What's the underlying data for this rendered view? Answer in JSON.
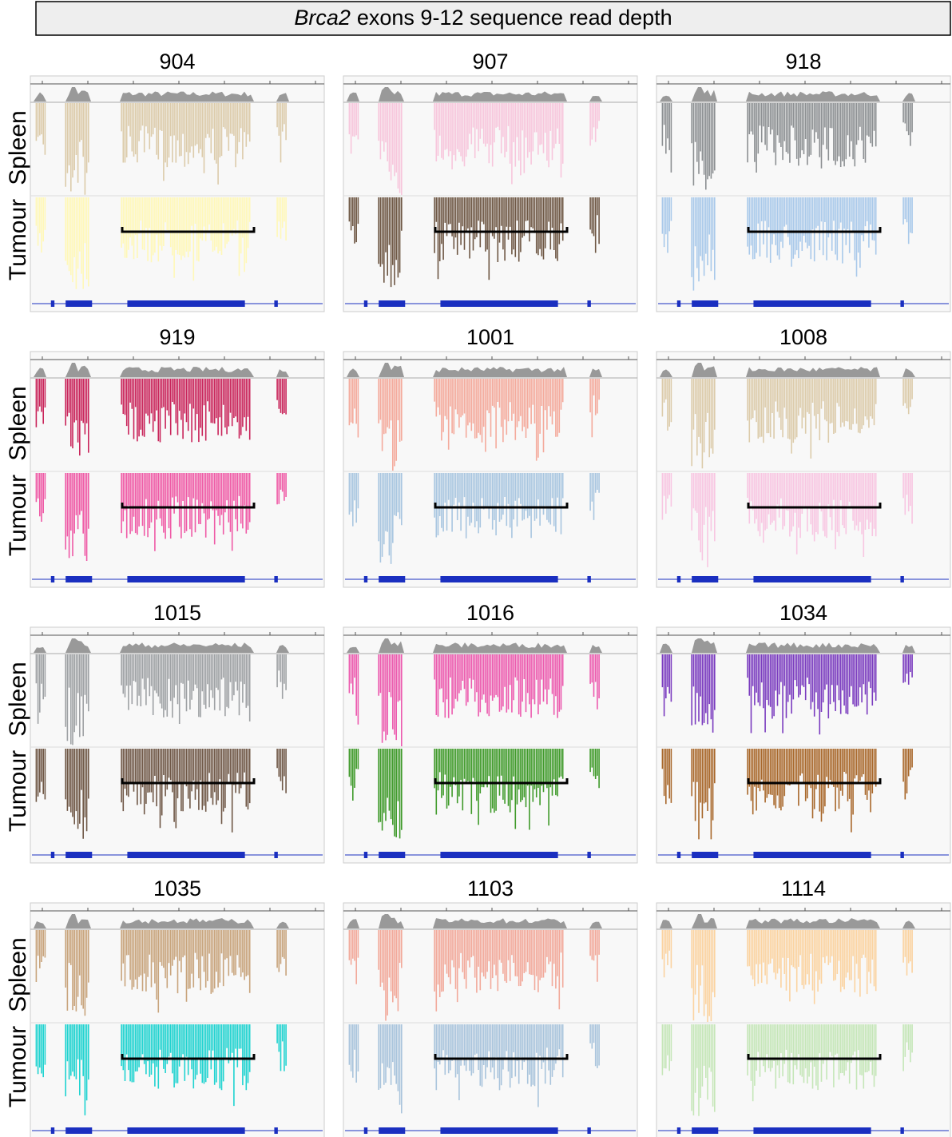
{
  "header": {
    "title_gene": "Brca2",
    "title_rest": "exons 9-12 sequence read depth"
  },
  "row_labels": {
    "spleen": "Spleen",
    "tumour": "Tumour"
  },
  "panels": [
    {
      "label": "904",
      "spleen_color": "#dccbaa",
      "tumour_color": "#fff8b8"
    },
    {
      "label": "907",
      "spleen_color": "#f7c6dc",
      "tumour_color": "#6e5744"
    },
    {
      "label": "918",
      "spleen_color": "#8c8f92",
      "tumour_color": "#a9c9ea"
    },
    {
      "label": "919",
      "spleen_color": "#c9245a",
      "tumour_color": "#ef5aa6"
    },
    {
      "label": "1001",
      "spleen_color": "#f4aa9c",
      "tumour_color": "#a9c6e0"
    },
    {
      "label": "1008",
      "spleen_color": "#dccbaa",
      "tumour_color": "#f8c6e2"
    },
    {
      "label": "1015",
      "spleen_color": "#9ea1a4",
      "tumour_color": "#6f5746"
    },
    {
      "label": "1016",
      "spleen_color": "#ec5aae",
      "tumour_color": "#3f9a2a"
    },
    {
      "label": "1034",
      "spleen_color": "#7a3bbf",
      "tumour_color": "#a8672a"
    },
    {
      "label": "1035",
      "spleen_color": "#c8a47c",
      "tumour_color": "#1fd3d0"
    },
    {
      "label": "1103",
      "spleen_color": "#f2a99a",
      "tumour_color": "#a9c4dc"
    },
    {
      "label": "1114",
      "spleen_color": "#fbd3a0",
      "tumour_color": "#c5e6b8"
    }
  ]
}
